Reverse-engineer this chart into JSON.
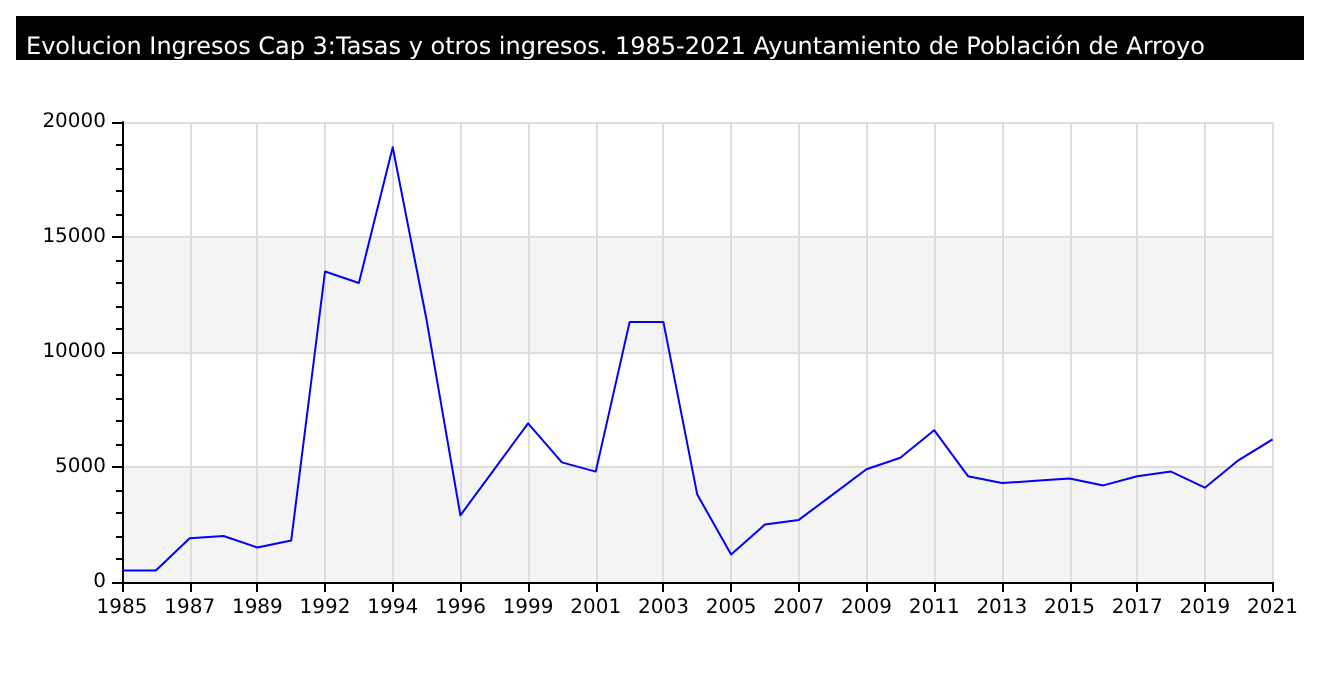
{
  "chart_data": {
    "type": "line",
    "title": "Evolucion Ingresos Cap 3:Tasas y otros ingresos. 1985-2021 Ayuntamiento de Población de Arroyo",
    "categories": [
      "1985",
      null,
      "1987",
      null,
      "1989",
      null,
      "1992",
      null,
      "1994",
      null,
      "1996",
      null,
      "1999",
      null,
      "2001",
      null,
      "2003",
      null,
      "2005",
      null,
      "2007",
      null,
      "2009",
      null,
      "2011",
      null,
      "2013",
      null,
      "2015",
      null,
      "2017",
      null,
      "2019",
      null,
      "2021"
    ],
    "series": [
      {
        "color": "#0000ff",
        "values": [
          500,
          500,
          1900,
          2000,
          1500,
          1800,
          13500,
          13000,
          18900,
          11400,
          2900,
          4900,
          6900,
          5200,
          4800,
          11300,
          11300,
          3800,
          1200,
          2500,
          2700,
          3800,
          4900,
          5400,
          6600,
          4600,
          4300,
          4400,
          4500,
          4200,
          4600,
          4800,
          4100,
          5300,
          6200
        ]
      }
    ],
    "ylim": [
      0,
      20000
    ],
    "yticks": [
      0,
      5000,
      10000,
      15000,
      20000
    ],
    "grid": true,
    "marker": "none",
    "line_style": "solid"
  }
}
